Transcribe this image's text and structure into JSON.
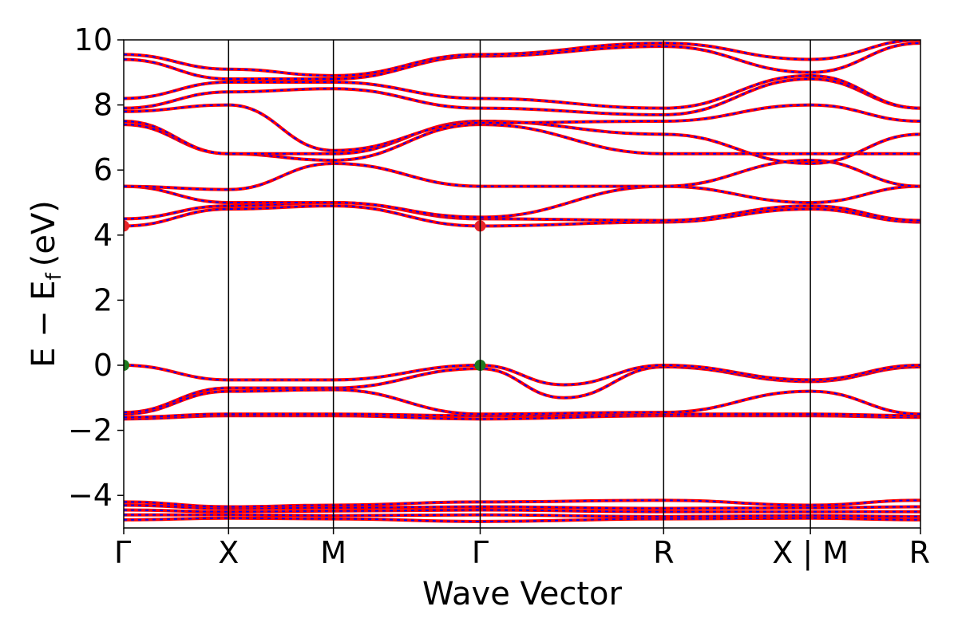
{
  "chart_data": {
    "type": "line",
    "title": "",
    "xlabel": "Wave Vector",
    "ylabel_main": "E − E",
    "ylabel_sub": "f",
    "ylabel_unit": "(eV)",
    "ylim": [
      -5,
      10
    ],
    "yticks": [
      10,
      8,
      6,
      4,
      2,
      0,
      -2,
      -4
    ],
    "ytick_labels": [
      "10",
      "8",
      "6",
      "4",
      "2",
      "0",
      "−2",
      "−4"
    ],
    "kpoint_labels": [
      "Γ",
      "X",
      "M",
      "Γ",
      "R",
      "X | M",
      "R"
    ],
    "kpoint_positions": [
      0,
      1,
      2,
      3.4,
      5.15,
      6.55,
      7.6
    ],
    "xlim": [
      0,
      7.6
    ],
    "band_colors": {
      "solid": "#ff0000",
      "dashed": "#0000ff"
    },
    "extrema_markers": [
      {
        "x": 0,
        "y": 4.28,
        "color": "#e8242a"
      },
      {
        "x": 3.4,
        "y": 4.28,
        "color": "#e8242a"
      },
      {
        "x": 0,
        "y": 0.0,
        "color": "#1f7a1f"
      },
      {
        "x": 3.4,
        "y": 0.0,
        "color": "#1f7a1f"
      }
    ],
    "series": [
      {
        "x": [
          0,
          1,
          2,
          3.4,
          5.15,
          6.55,
          7.6
        ],
        "y": [
          -4.75,
          -4.7,
          -4.72,
          -4.8,
          -4.72,
          -4.7,
          -4.75
        ]
      },
      {
        "x": [
          0,
          1,
          2,
          3.4,
          5.15,
          6.55,
          7.6
        ],
        "y": [
          -4.6,
          -4.6,
          -4.62,
          -4.6,
          -4.65,
          -4.62,
          -4.65
        ]
      },
      {
        "x": [
          0,
          1,
          2,
          3.4,
          5.15,
          6.55,
          7.6
        ],
        "y": [
          -4.45,
          -4.5,
          -4.48,
          -4.45,
          -4.5,
          -4.5,
          -4.5
        ]
      },
      {
        "x": [
          0,
          1,
          2,
          3.4,
          5.15,
          6.55,
          7.6
        ],
        "y": [
          -4.3,
          -4.4,
          -4.38,
          -4.35,
          -4.4,
          -4.38,
          -4.35
        ]
      },
      {
        "x": [
          0,
          1,
          2,
          3.4,
          5.15,
          6.55,
          7.6
        ],
        "y": [
          -4.2,
          -4.35,
          -4.3,
          -4.2,
          -4.15,
          -4.3,
          -4.15
        ]
      },
      {
        "x": [
          0,
          1,
          2,
          3.4,
          5.15,
          6.55,
          7.6
        ],
        "y": [
          -1.65,
          -1.55,
          -1.55,
          -1.65,
          -1.55,
          -1.55,
          -1.6
        ]
      },
      {
        "x": [
          0,
          1,
          2,
          3.4,
          5.15,
          6.55,
          7.6
        ],
        "y": [
          -1.6,
          -1.5,
          -1.5,
          -1.55,
          -1.5,
          -1.5,
          -1.55
        ]
      },
      {
        "x": [
          0,
          1,
          2,
          3.4,
          5.15,
          6.55,
          7.6
        ],
        "y": [
          -1.5,
          -0.8,
          -0.75,
          -1.5,
          -1.45,
          -0.8,
          -1.5
        ]
      },
      {
        "x": [
          0,
          1,
          2,
          3.4,
          4.2,
          5.15,
          6.55,
          7.6
        ],
        "y": [
          -1.45,
          -0.7,
          -0.7,
          -0.1,
          -1.0,
          -0.05,
          -0.5,
          -0.05
        ]
      },
      {
        "x": [
          0,
          1,
          2,
          3.4,
          4.2,
          5.15,
          6.55,
          7.6
        ],
        "y": [
          0.0,
          -0.45,
          -0.45,
          0.0,
          -0.6,
          0.0,
          -0.45,
          0.0
        ]
      },
      {
        "x": [
          0,
          1,
          2,
          3.4,
          5.15,
          6.55,
          7.6
        ],
        "y": [
          4.28,
          4.8,
          4.9,
          4.28,
          4.4,
          4.8,
          4.4
        ]
      },
      {
        "x": [
          0,
          1,
          2,
          3.4,
          5.15,
          6.55,
          7.6
        ],
        "y": [
          4.5,
          4.9,
          5.0,
          4.5,
          4.45,
          4.9,
          4.45
        ]
      },
      {
        "x": [
          0,
          1,
          2,
          3.4,
          5.15,
          6.55,
          7.6
        ],
        "y": [
          5.5,
          5.0,
          5.0,
          4.55,
          5.5,
          5.0,
          5.5
        ]
      },
      {
        "x": [
          0,
          1,
          2,
          3.4,
          5.15,
          6.55,
          7.6
        ],
        "y": [
          5.5,
          5.4,
          6.2,
          5.5,
          5.5,
          6.3,
          5.5
        ]
      },
      {
        "x": [
          0,
          1,
          2,
          3.4,
          5.15,
          6.55,
          7.6
        ],
        "y": [
          7.4,
          6.5,
          6.3,
          7.4,
          6.5,
          6.5,
          6.5
        ]
      },
      {
        "x": [
          0,
          1,
          2,
          3.4,
          5.15,
          6.55,
          7.6
        ],
        "y": [
          7.5,
          6.5,
          6.5,
          7.5,
          7.1,
          6.2,
          7.1
        ]
      },
      {
        "x": [
          0,
          1,
          2,
          3.4,
          5.15,
          6.55,
          7.6
        ],
        "y": [
          7.8,
          8.0,
          6.6,
          7.45,
          7.5,
          8.0,
          7.5
        ]
      },
      {
        "x": [
          0,
          1,
          2,
          3.4,
          5.15,
          6.55,
          7.6
        ],
        "y": [
          7.9,
          8.4,
          8.5,
          7.9,
          7.7,
          8.8,
          7.9
        ]
      },
      {
        "x": [
          0,
          1,
          2,
          3.4,
          5.15,
          6.55,
          7.6
        ],
        "y": [
          8.2,
          8.7,
          8.7,
          8.2,
          7.9,
          8.9,
          7.9
        ]
      },
      {
        "x": [
          0,
          1,
          2,
          3.4,
          5.15,
          6.55,
          7.6
        ],
        "y": [
          9.4,
          8.8,
          8.8,
          9.5,
          9.8,
          9.0,
          9.9
        ]
      },
      {
        "x": [
          0,
          1,
          2,
          3.4,
          5.15,
          6.55,
          7.6
        ],
        "y": [
          9.55,
          9.1,
          8.9,
          9.55,
          9.9,
          9.4,
          10.0
        ]
      }
    ]
  }
}
